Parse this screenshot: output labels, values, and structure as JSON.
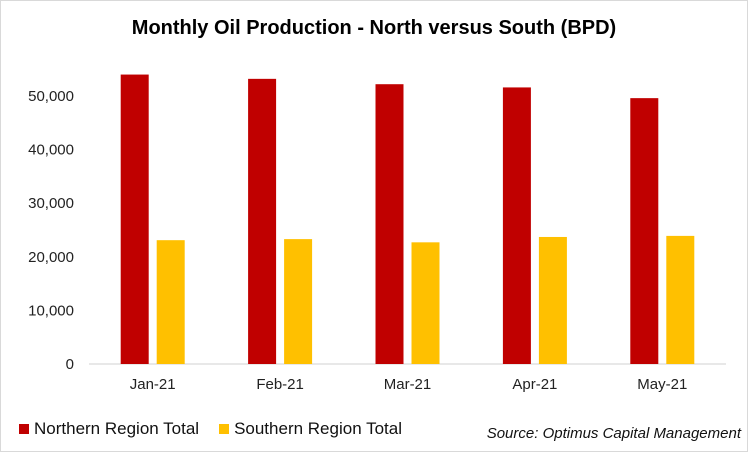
{
  "chart_data": {
    "type": "bar",
    "title": "Monthly Oil Production - North versus South (BPD)",
    "categories": [
      "Jan-21",
      "Feb-21",
      "Mar-21",
      "Apr-21",
      "May-21"
    ],
    "series": [
      {
        "name": "Northern Region Total",
        "color": "#c00000",
        "values": [
          54000,
          53200,
          52200,
          51600,
          49600
        ]
      },
      {
        "name": "Southern Region Total",
        "color": "#ffc000",
        "values": [
          23100,
          23300,
          22700,
          23700,
          23900
        ]
      }
    ],
    "ylim": [
      0,
      50000
    ],
    "yticks": [
      0,
      10000,
      20000,
      30000,
      40000,
      50000
    ],
    "ytick_labels": [
      "0",
      "10,000",
      "20,000",
      "30,000",
      "40,000",
      "50,000"
    ],
    "grid": false,
    "legend": "bottom-left",
    "source": "Source: Optimus Capital Management"
  }
}
